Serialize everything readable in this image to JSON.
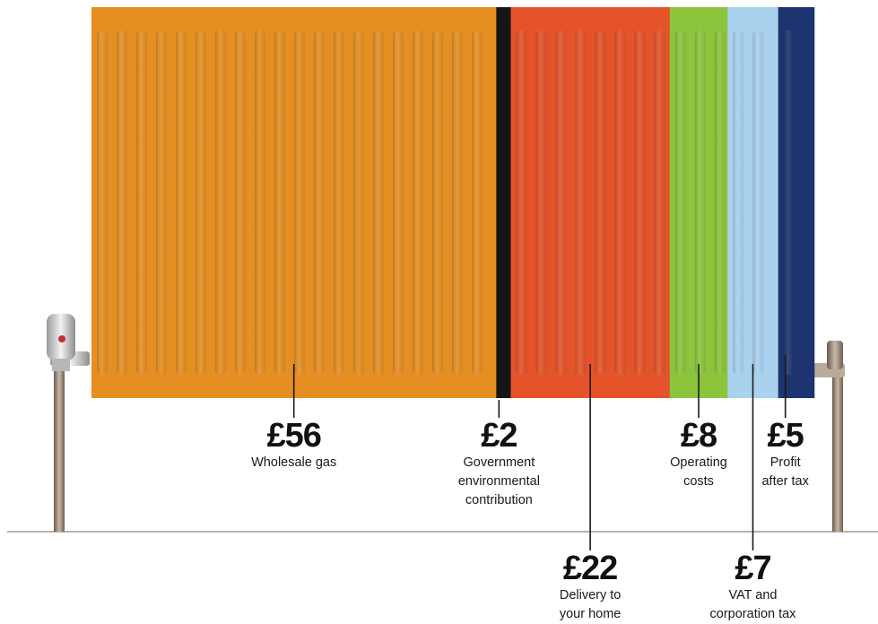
{
  "chart_data": {
    "type": "bar",
    "orientation": "stacked-horizontal",
    "unit": "£",
    "categories": [
      "Wholesale gas",
      "Government environmental contribution",
      "Delivery to your home",
      "Operating costs",
      "VAT and corporation tax",
      "Profit after tax"
    ],
    "values": [
      56,
      2,
      22,
      8,
      7,
      5
    ],
    "segments": [
      {
        "amount": "£56",
        "lines": [
          "Wholesale gas"
        ],
        "value": 56,
        "color": "#e58f22",
        "label_row": "top"
      },
      {
        "amount": "£2",
        "lines": [
          "Government",
          "environmental",
          "contribution"
        ],
        "value": 2,
        "color": "#151515",
        "label_row": "top"
      },
      {
        "amount": "£22",
        "lines": [
          "Delivery to",
          "your home"
        ],
        "value": 22,
        "color": "#e4532a",
        "label_row": "bottom"
      },
      {
        "amount": "£8",
        "lines": [
          "Operating",
          "costs"
        ],
        "value": 8,
        "color": "#8cc43c",
        "label_row": "top"
      },
      {
        "amount": "£7",
        "lines": [
          "VAT and",
          "corporation tax"
        ],
        "value": 7,
        "color": "#a9d2ee",
        "label_row": "bottom"
      },
      {
        "amount": "£5",
        "lines": [
          "Profit",
          "after tax"
        ],
        "value": 5,
        "color": "#1e3470",
        "label_row": "top"
      }
    ],
    "total": 100,
    "title": "",
    "xlabel": "",
    "ylabel": ""
  }
}
